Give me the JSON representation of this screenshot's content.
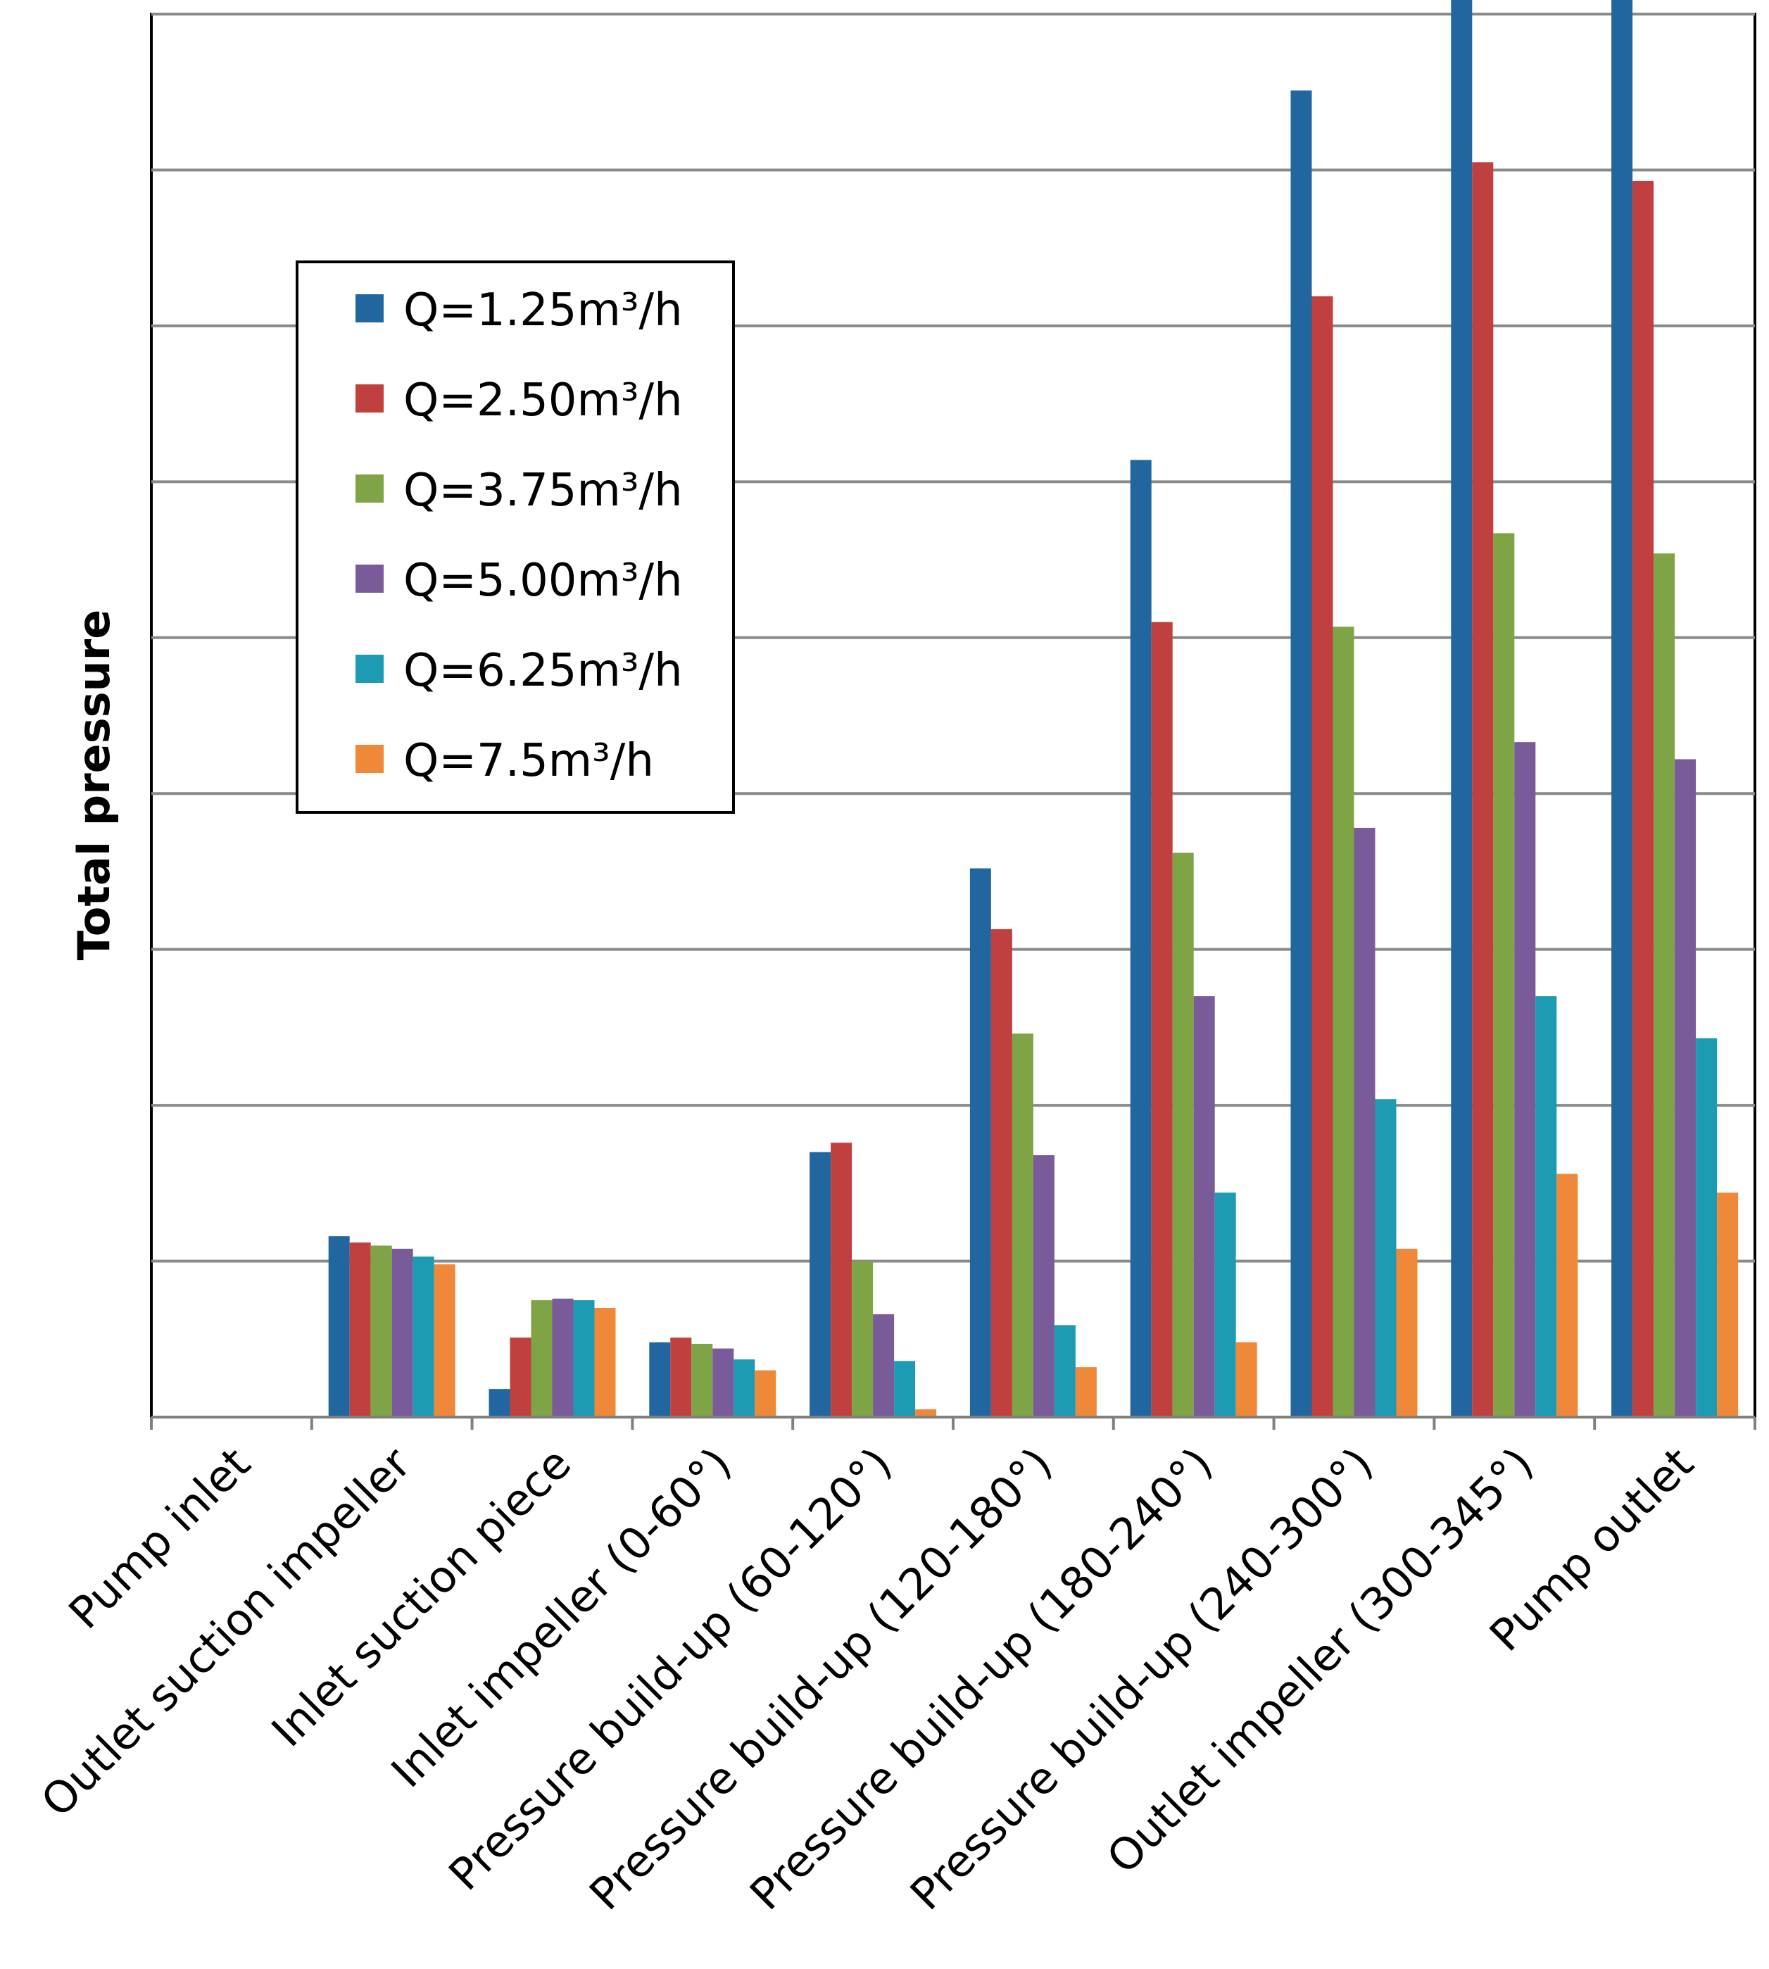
{
  "chart_data": {
    "type": "bar",
    "title": "",
    "xlabel": "",
    "ylabel": "Total pressure",
    "ylim": [
      0,
      9
    ],
    "grid": true,
    "legend_position": "upper-left",
    "categories": [
      "Pump inlet",
      "Outlet suction impeller",
      "Inlet suction piece",
      "Inlet impeller (0-60°)",
      "Pressure build-up (60-120°)",
      "Pressure build-up (120-180°)",
      "Pressure build-up (180-240°)",
      "Pressure build-up (240-300°)",
      "Outlet impeller (300-345°)",
      "Pump outlet"
    ],
    "series": [
      {
        "name": "Q=1.25m³/h",
        "color": "#2266a0",
        "values": [
          0,
          1.16,
          0.18,
          0.48,
          1.7,
          3.52,
          6.14,
          8.51,
          9.26,
          9.26
        ]
      },
      {
        "name": "Q=2.50m³/h",
        "color": "#c0403f",
        "values": [
          0,
          1.12,
          0.51,
          0.51,
          1.76,
          3.13,
          5.1,
          7.19,
          8.05,
          7.93
        ]
      },
      {
        "name": "Q=3.75m³/h",
        "color": "#7ea446",
        "values": [
          0,
          1.1,
          0.75,
          0.47,
          1.0,
          2.46,
          3.62,
          5.07,
          5.67,
          5.54
        ]
      },
      {
        "name": "Q=5.00m³/h",
        "color": "#7a5b9a",
        "values": [
          0,
          1.08,
          0.76,
          0.44,
          0.66,
          1.68,
          2.7,
          3.78,
          4.33,
          4.22
        ]
      },
      {
        "name": "Q=6.25m³/h",
        "color": "#1d9bb3",
        "values": [
          0,
          1.03,
          0.75,
          0.37,
          0.36,
          0.59,
          1.44,
          2.04,
          2.7,
          2.43
        ]
      },
      {
        "name": "Q=7.5m³/h",
        "color": "#f0883a",
        "values": [
          0,
          0.98,
          0.7,
          0.3,
          0.05,
          0.32,
          0.48,
          1.08,
          1.56,
          1.44
        ]
      }
    ]
  }
}
